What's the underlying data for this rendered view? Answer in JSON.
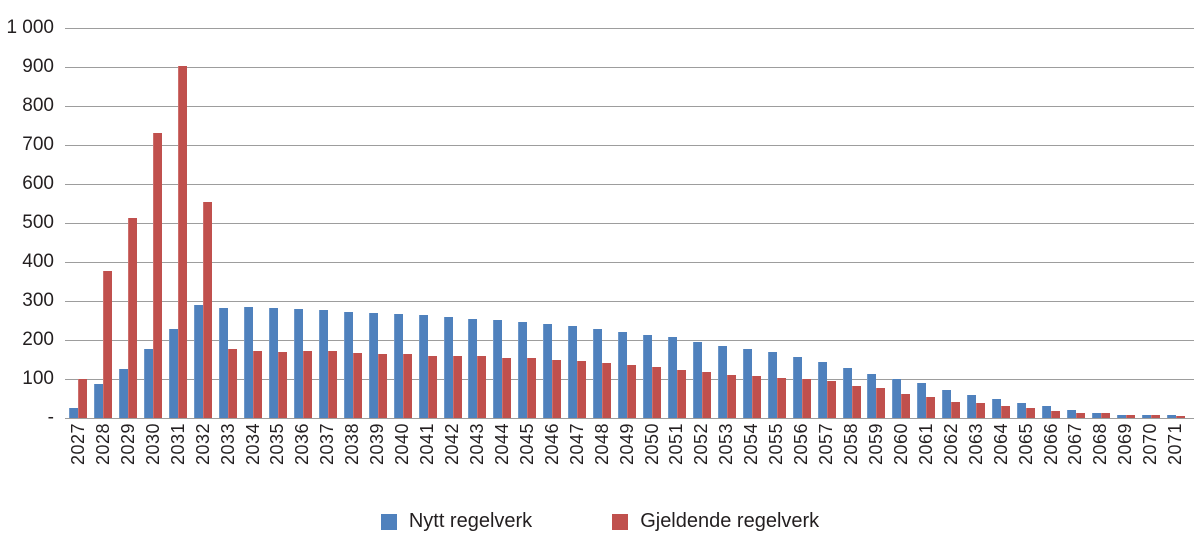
{
  "chart_data": {
    "type": "bar",
    "title": "",
    "xlabel": "",
    "ylabel": "",
    "ylim": [
      0,
      1000
    ],
    "ytick_interval": 100,
    "ytick_labels": [
      "-",
      "100",
      "200",
      "300",
      "400",
      "500",
      "600",
      "700",
      "800",
      "900",
      "1 000"
    ],
    "grid": true,
    "legend_position": "bottom",
    "categories": [
      "2027",
      "2028",
      "2029",
      "2030",
      "2031",
      "2032",
      "2033",
      "2034",
      "2035",
      "2036",
      "2037",
      "2038",
      "2039",
      "2040",
      "2041",
      "2042",
      "2043",
      "2044",
      "2045",
      "2046",
      "2047",
      "2048",
      "2049",
      "2050",
      "2051",
      "2052",
      "2053",
      "2054",
      "2055",
      "2056",
      "2057",
      "2058",
      "2059",
      "2060",
      "2061",
      "2062",
      "2063",
      "2064",
      "2065",
      "2066",
      "2067",
      "2068",
      "2069",
      "2070",
      "2071"
    ],
    "series": [
      {
        "name": "Nytt regelverk",
        "color": "#4f81bd",
        "values": [
          25,
          88,
          125,
          178,
          227,
          291,
          283,
          284,
          282,
          280,
          277,
          273,
          270,
          266,
          265,
          259,
          255,
          252,
          246,
          242,
          236,
          229,
          220,
          214,
          207,
          195,
          184,
          177,
          168,
          157,
          144,
          128,
          113,
          100,
          90,
          73,
          60,
          48,
          38,
          31,
          20,
          14,
          8,
          7,
          7
        ]
      },
      {
        "name": "Gjeldende regelverk",
        "color": "#c0504d",
        "values": [
          100,
          378,
          513,
          730,
          903,
          555,
          177,
          172,
          170,
          172,
          171,
          166,
          164,
          163,
          160,
          160,
          158,
          154,
          153,
          148,
          145,
          141,
          136,
          131,
          124,
          119,
          111,
          107,
          103,
          100,
          95,
          83,
          76,
          61,
          55,
          41,
          38,
          31,
          26,
          19,
          14,
          12,
          8,
          7,
          6
        ]
      }
    ]
  },
  "legend": {
    "items": [
      {
        "label": "Nytt regelverk",
        "color": "#4f81bd"
      },
      {
        "label": "Gjeldende regelverk",
        "color": "#c0504d"
      }
    ]
  }
}
